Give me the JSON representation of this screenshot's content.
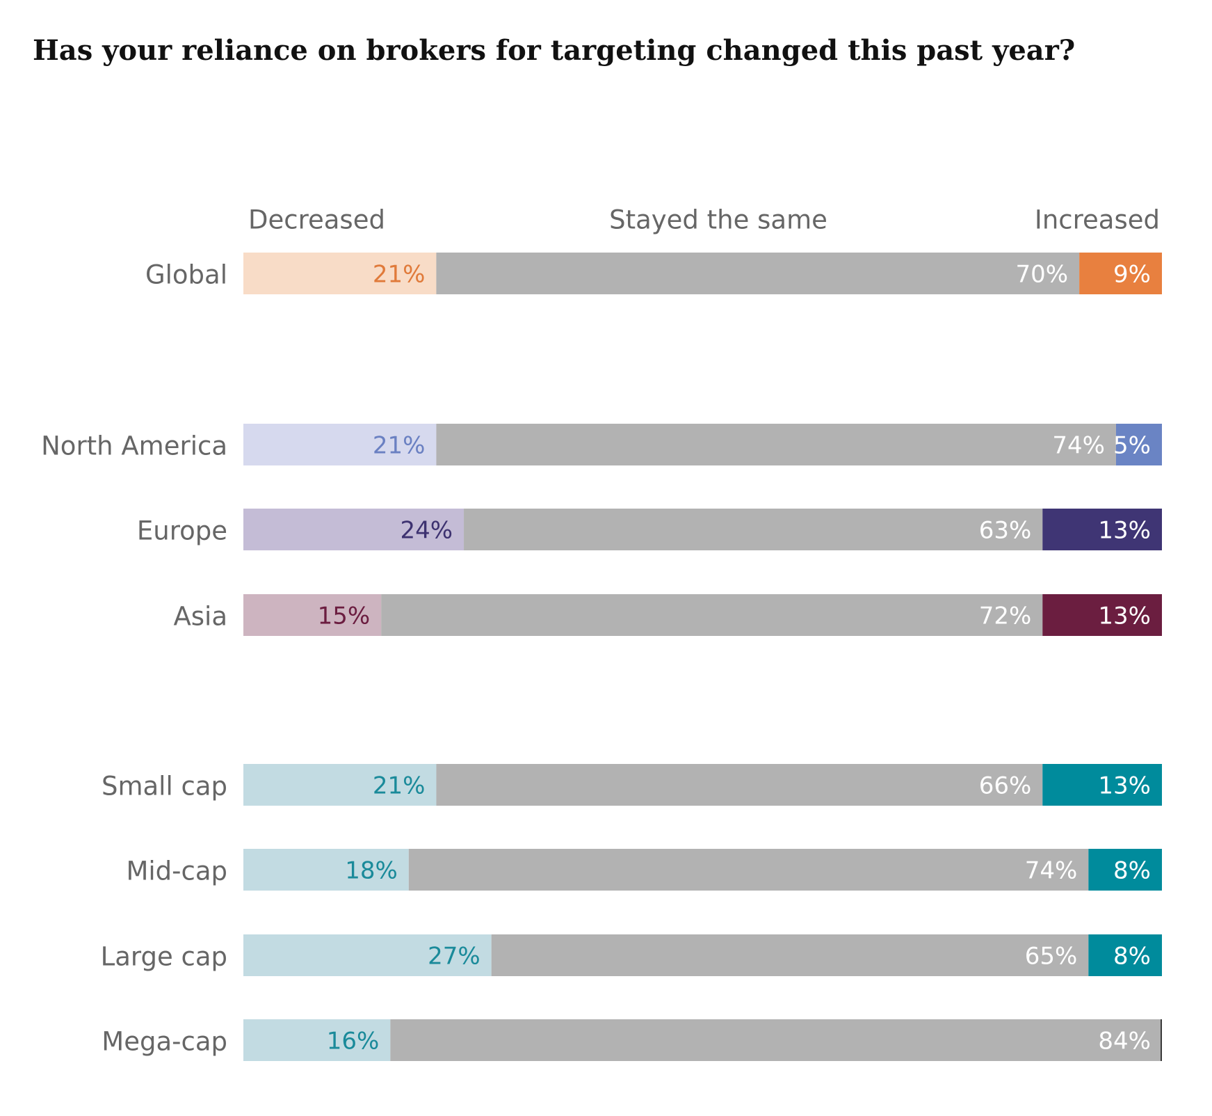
{
  "chart_data": {
    "type": "stacked-bar-100",
    "title": "Has your reliance on brokers for targeting changed this past year?",
    "categories": [
      "Global",
      "North America",
      "Europe",
      "Asia",
      "Small cap",
      "Mid-cap",
      "Large cap",
      "Mega-cap"
    ],
    "xlim": [
      0,
      100
    ],
    "series": [
      {
        "name": "Decreased",
        "colors": [
          "#f8dcc7",
          "#d6d9ee",
          "#c4bcd6",
          "#cdb4c0",
          "#c2dbe2",
          "#c2dbe2",
          "#c2dbe2",
          "#c2dbe2"
        ],
        "label_colors": [
          "#e07a3a",
          "#6a80c2",
          "#3d3270",
          "#6b1d40",
          "#1a8a9a",
          "#1a8a9a",
          "#1a8a9a",
          "#1a8a9a"
        ],
        "values": [
          21,
          21,
          24,
          15,
          21,
          18,
          27,
          16
        ],
        "value_labels": [
          "21%",
          "21%",
          "24%",
          "15%",
          "21%",
          "18%",
          "27%",
          "16%"
        ]
      },
      {
        "name": "Stayed the same",
        "color": "#b2b2b2",
        "label_color": "#ffffff",
        "values": [
          70,
          74,
          63,
          72,
          66,
          74,
          65,
          84
        ],
        "value_labels": [
          "70%",
          "74%",
          "63%",
          "72%",
          "66%",
          "74%",
          "65%",
          "84%"
        ]
      },
      {
        "name": "Increased",
        "colors": [
          "#e8803f",
          "#6a84c4",
          "#3f3574",
          "#6b1e40",
          "#008b9c",
          "#008b9c",
          "#008b9c",
          "#3a3a3a"
        ],
        "label_color": "#ffffff",
        "values": [
          9,
          5,
          13,
          13,
          13,
          8,
          8,
          0
        ],
        "value_labels": [
          "9%",
          "5%",
          "13%",
          "13%",
          "13%",
          "8%",
          "8%",
          null
        ]
      }
    ]
  }
}
